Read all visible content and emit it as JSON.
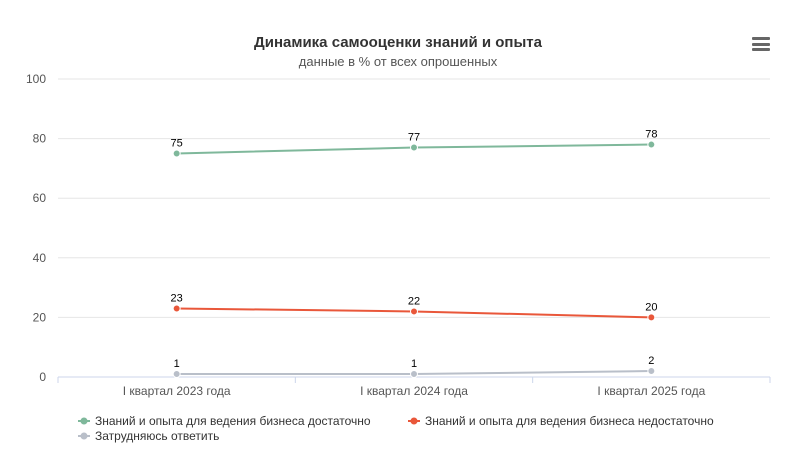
{
  "chart_data": {
    "type": "line",
    "title": "Динамика самооценки знаний и опыта",
    "subtitle": "данные в % от всех опрошенных",
    "xlabel": "",
    "ylabel": "",
    "categories": [
      "I квартал 2023 года",
      "I квартал 2024 года",
      "I квартал 2025 года"
    ],
    "ylim": [
      0,
      100
    ],
    "yticks": [
      0,
      20,
      40,
      60,
      80,
      100
    ],
    "grid": true,
    "legend_position": "bottom",
    "series": [
      {
        "name": "Знаний и опыта для ведения бизнеса достаточно",
        "values": [
          75,
          77,
          78
        ],
        "color": "#7fb89b"
      },
      {
        "name": "Знаний и опыта для ведения бизнеса недостаточно",
        "values": [
          23,
          22,
          20
        ],
        "color": "#e9573a"
      },
      {
        "name": "Затрудняюсь ответить",
        "values": [
          1,
          1,
          2
        ],
        "color": "#b9bfc9"
      }
    ]
  },
  "menu_icon": "hamburger-menu-icon"
}
